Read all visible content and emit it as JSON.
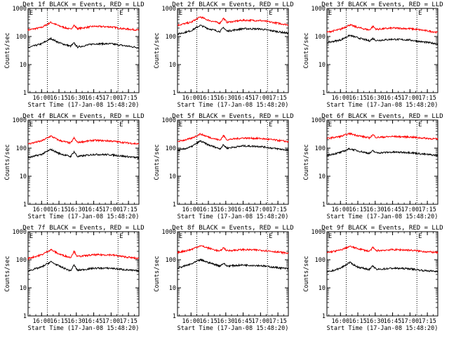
{
  "chart_data": [
    {
      "type": "line",
      "title": "Det 1f BLACK = Events, RED = LLD",
      "ylabel": "Counts/sec",
      "xlabel": "Start Time (17-Jan-08 15:48:20)",
      "x_ticks": [
        "16:00",
        "16:15",
        "16:30",
        "16:45",
        "17:00",
        "17:15"
      ],
      "y_ticks": [
        "1",
        "10",
        "100",
        "1000"
      ],
      "y_scale": "log",
      "ylim": [
        1,
        1000
      ],
      "xlim": [
        "15:48:20",
        "17:24:00"
      ],
      "vlines": [
        "16:05",
        "17:06"
      ],
      "markers": [
        "E",
        "E"
      ],
      "series": [
        {
          "color": "#ff0000",
          "x": [
            "15:48",
            "16:00",
            "16:08",
            "16:15",
            "16:25",
            "16:28",
            "16:31",
            "16:45",
            "17:00",
            "17:10",
            "17:24"
          ],
          "values": [
            170,
            210,
            320,
            240,
            180,
            250,
            190,
            230,
            220,
            190,
            170
          ]
        },
        {
          "color": "#000000",
          "x": [
            "15:48",
            "16:00",
            "16:08",
            "16:15",
            "16:25",
            "16:28",
            "16:31",
            "16:45",
            "17:00",
            "17:10",
            "17:24"
          ],
          "values": [
            40,
            55,
            85,
            60,
            45,
            58,
            42,
            55,
            55,
            48,
            40
          ]
        }
      ]
    },
    {
      "type": "line",
      "title": "Det 2f BLACK = Events, RED = LLD",
      "ylabel": "Counts/sec",
      "xlabel": "Start Time (17-Jan-08 15:48:20)",
      "x_ticks": [
        "16:00",
        "16:15",
        "16:30",
        "16:45",
        "17:00",
        "17:15"
      ],
      "y_ticks": [
        "1",
        "10",
        "100",
        "1000"
      ],
      "y_scale": "log",
      "ylim": [
        1,
        1000
      ],
      "xlim": [
        "15:48:20",
        "17:24:00"
      ],
      "vlines": [
        "16:05",
        "17:06"
      ],
      "markers": [
        "E",
        "E"
      ],
      "series": [
        {
          "color": "#ff0000",
          "x": [
            "15:48",
            "16:00",
            "16:08",
            "16:15",
            "16:25",
            "16:28",
            "16:31",
            "16:45",
            "17:00",
            "17:10",
            "17:24"
          ],
          "values": [
            250,
            320,
            500,
            380,
            300,
            450,
            320,
            380,
            370,
            320,
            260
          ]
        },
        {
          "color": "#000000",
          "x": [
            "15:48",
            "16:00",
            "16:08",
            "16:15",
            "16:25",
            "16:28",
            "16:31",
            "16:45",
            "17:00",
            "17:10",
            "17:24"
          ],
          "values": [
            120,
            160,
            250,
            190,
            150,
            210,
            155,
            190,
            185,
            160,
            130
          ]
        }
      ]
    },
    {
      "type": "line",
      "title": "Det 3f BLACK = Events, RED = LLD",
      "ylabel": "Counts/sec",
      "xlabel": "Start Time (17-Jan-08 15:48:20)",
      "x_ticks": [
        "16:00",
        "16:15",
        "16:30",
        "16:45",
        "17:00",
        "17:15"
      ],
      "y_ticks": [
        "1",
        "10",
        "100",
        "1000"
      ],
      "y_scale": "log",
      "ylim": [
        1,
        1000
      ],
      "xlim": [
        "15:48:20",
        "17:24:00"
      ],
      "vlines": [
        "16:05",
        "17:06"
      ],
      "markers": [
        "E",
        "E"
      ],
      "series": [
        {
          "color": "#ff0000",
          "x": [
            "15:48",
            "16:00",
            "16:08",
            "16:15",
            "16:25",
            "16:28",
            "16:31",
            "16:45",
            "17:00",
            "17:10",
            "17:24"
          ],
          "values": [
            140,
            180,
            260,
            210,
            170,
            230,
            180,
            200,
            190,
            170,
            140
          ]
        },
        {
          "color": "#000000",
          "x": [
            "15:48",
            "16:00",
            "16:08",
            "16:15",
            "16:25",
            "16:28",
            "16:31",
            "16:45",
            "17:00",
            "17:10",
            "17:24"
          ],
          "values": [
            60,
            75,
            110,
            90,
            70,
            85,
            72,
            80,
            75,
            65,
            55
          ]
        }
      ]
    },
    {
      "type": "line",
      "title": "Det 4f BLACK = Events, RED = LLD",
      "ylabel": "Counts/sec",
      "xlabel": "Start Time (17-Jan-08 15:48:20)",
      "x_ticks": [
        "16:00",
        "16:15",
        "16:30",
        "16:45",
        "17:00",
        "17:15"
      ],
      "y_ticks": [
        "1",
        "10",
        "100",
        "1000"
      ],
      "y_scale": "log",
      "ylim": [
        1,
        1000
      ],
      "xlim": [
        "15:48:20",
        "17:24:00"
      ],
      "vlines": [
        "16:05",
        "17:06"
      ],
      "markers": [
        "E",
        "E"
      ],
      "series": [
        {
          "color": "#ff0000",
          "x": [
            "15:48",
            "16:00",
            "16:08",
            "16:15",
            "16:25",
            "16:28",
            "16:31",
            "16:45",
            "17:00",
            "17:10",
            "17:24"
          ],
          "values": [
            140,
            180,
            270,
            190,
            150,
            230,
            160,
            190,
            180,
            160,
            140
          ]
        },
        {
          "color": "#000000",
          "x": [
            "15:48",
            "16:00",
            "16:08",
            "16:15",
            "16:25",
            "16:28",
            "16:31",
            "16:45",
            "17:00",
            "17:10",
            "17:24"
          ],
          "values": [
            45,
            60,
            90,
            65,
            50,
            75,
            50,
            60,
            58,
            52,
            45
          ]
        }
      ]
    },
    {
      "type": "line",
      "title": "Det 5f BLACK = Events, RED = LLD",
      "ylabel": "Counts/sec",
      "xlabel": "Start Time (17-Jan-08 15:48:20)",
      "x_ticks": [
        "16:00",
        "16:15",
        "16:30",
        "16:45",
        "17:00",
        "17:15"
      ],
      "y_ticks": [
        "1",
        "10",
        "100",
        "1000"
      ],
      "y_scale": "log",
      "ylim": [
        1,
        1000
      ],
      "xlim": [
        "15:48:20",
        "17:24:00"
      ],
      "vlines": [
        "16:05",
        "17:06"
      ],
      "markers": [
        "E",
        "E"
      ],
      "series": [
        {
          "color": "#ff0000",
          "x": [
            "15:48",
            "16:00",
            "16:08",
            "16:15",
            "16:25",
            "16:28",
            "16:31",
            "16:45",
            "17:00",
            "17:10",
            "17:24"
          ],
          "values": [
            170,
            220,
            320,
            250,
            190,
            280,
            200,
            230,
            220,
            200,
            170
          ]
        },
        {
          "color": "#000000",
          "x": [
            "15:48",
            "16:00",
            "16:08",
            "16:15",
            "16:25",
            "16:28",
            "16:31",
            "16:45",
            "17:00",
            "17:10",
            "17:24"
          ],
          "values": [
            80,
            110,
            180,
            130,
            95,
            130,
            100,
            120,
            115,
            100,
            85
          ]
        }
      ]
    },
    {
      "type": "line",
      "title": "Det 6f BLACK = Events, RED = LLD",
      "ylabel": "Counts/sec",
      "xlabel": "Start Time (17-Jan-08 15:48:20)",
      "x_ticks": [
        "16:00",
        "16:15",
        "16:30",
        "16:45",
        "17:00",
        "17:15"
      ],
      "y_ticks": [
        "1",
        "10",
        "100",
        "1000"
      ],
      "y_scale": "log",
      "ylim": [
        1,
        1000
      ],
      "xlim": [
        "15:48:20",
        "17:24:00"
      ],
      "vlines": [
        "16:05",
        "17:06"
      ],
      "markers": [
        "E",
        "E"
      ],
      "series": [
        {
          "color": "#ff0000",
          "x": [
            "15:48",
            "16:00",
            "16:08",
            "16:15",
            "16:25",
            "16:28",
            "16:31",
            "16:45",
            "17:00",
            "17:10",
            "17:24"
          ],
          "values": [
            220,
            260,
            330,
            280,
            230,
            300,
            240,
            260,
            250,
            230,
            210
          ]
        },
        {
          "color": "#000000",
          "x": [
            "15:48",
            "16:00",
            "16:08",
            "16:15",
            "16:25",
            "16:28",
            "16:31",
            "16:45",
            "17:00",
            "17:10",
            "17:24"
          ],
          "values": [
            55,
            70,
            95,
            80,
            65,
            80,
            68,
            72,
            70,
            62,
            55
          ]
        }
      ]
    },
    {
      "type": "line",
      "title": "Det 7f BLACK = Events, RED = LLD",
      "ylabel": "Counts/sec",
      "xlabel": "Start Time (17-Jan-08 15:48:20)",
      "x_ticks": [
        "16:00",
        "16:15",
        "16:30",
        "16:45",
        "17:00",
        "17:15"
      ],
      "y_ticks": [
        "1",
        "10",
        "100",
        "1000"
      ],
      "y_scale": "log",
      "ylim": [
        1,
        1000
      ],
      "xlim": [
        "15:48:20",
        "17:24:00"
      ],
      "vlines": [
        "16:05",
        "17:06"
      ],
      "markers": [
        "E",
        "E"
      ],
      "series": [
        {
          "color": "#ff0000",
          "x": [
            "15:48",
            "16:00",
            "16:08",
            "16:15",
            "16:25",
            "16:28",
            "16:31",
            "16:45",
            "17:00",
            "17:10",
            "17:24"
          ],
          "values": [
            110,
            150,
            230,
            160,
            120,
            200,
            130,
            150,
            150,
            130,
            110
          ]
        },
        {
          "color": "#000000",
          "x": [
            "15:48",
            "16:00",
            "16:08",
            "16:15",
            "16:25",
            "16:28",
            "16:31",
            "16:45",
            "17:00",
            "17:10",
            "17:24"
          ],
          "values": [
            40,
            55,
            85,
            60,
            40,
            65,
            42,
            50,
            50,
            45,
            40
          ]
        }
      ]
    },
    {
      "type": "line",
      "title": "Det 8f BLACK = Events, RED = LLD",
      "ylabel": "Counts/sec",
      "xlabel": "Start Time (17-Jan-08 15:48:20)",
      "x_ticks": [
        "16:00",
        "16:15",
        "16:30",
        "16:45",
        "17:00",
        "17:15"
      ],
      "y_ticks": [
        "1",
        "10",
        "100",
        "1000"
      ],
      "y_scale": "log",
      "ylim": [
        1,
        1000
      ],
      "xlim": [
        "15:48:20",
        "17:24:00"
      ],
      "vlines": [
        "16:05",
        "17:06"
      ],
      "markers": [
        "E",
        "E"
      ],
      "series": [
        {
          "color": "#ff0000",
          "x": [
            "15:48",
            "16:00",
            "16:08",
            "16:15",
            "16:25",
            "16:28",
            "16:31",
            "16:45",
            "17:00",
            "17:10",
            "17:24"
          ],
          "values": [
            180,
            230,
            320,
            260,
            200,
            270,
            210,
            230,
            220,
            200,
            170
          ]
        },
        {
          "color": "#000000",
          "x": [
            "15:48",
            "16:00",
            "16:08",
            "16:15",
            "16:25",
            "16:28",
            "16:31",
            "16:45",
            "17:00",
            "17:10",
            "17:24"
          ],
          "values": [
            50,
            70,
            100,
            80,
            60,
            75,
            60,
            65,
            62,
            55,
            48
          ]
        }
      ]
    },
    {
      "type": "line",
      "title": "Det 9f BLACK = Events, RED = LLD",
      "ylabel": "Counts/sec",
      "xlabel": "Start Time (17-Jan-08 15:48:20)",
      "x_ticks": [
        "16:00",
        "16:15",
        "16:30",
        "16:45",
        "17:00",
        "17:15"
      ],
      "y_ticks": [
        "1",
        "10",
        "100",
        "1000"
      ],
      "y_scale": "log",
      "ylim": [
        1,
        1000
      ],
      "xlim": [
        "15:48:20",
        "17:24:00"
      ],
      "vlines": [
        "16:05",
        "17:06"
      ],
      "markers": [
        "E",
        "E"
      ],
      "series": [
        {
          "color": "#ff0000",
          "x": [
            "15:48",
            "16:00",
            "16:08",
            "16:15",
            "16:25",
            "16:28",
            "16:31",
            "16:45",
            "17:00",
            "17:10",
            "17:24"
          ],
          "values": [
            180,
            220,
            300,
            250,
            200,
            270,
            210,
            230,
            220,
            200,
            180
          ]
        },
        {
          "color": "#000000",
          "x": [
            "15:48",
            "16:00",
            "16:08",
            "16:15",
            "16:25",
            "16:28",
            "16:31",
            "16:45",
            "17:00",
            "17:10",
            "17:24"
          ],
          "values": [
            35,
            50,
            80,
            55,
            45,
            60,
            45,
            50,
            48,
            42,
            38
          ]
        }
      ]
    }
  ]
}
